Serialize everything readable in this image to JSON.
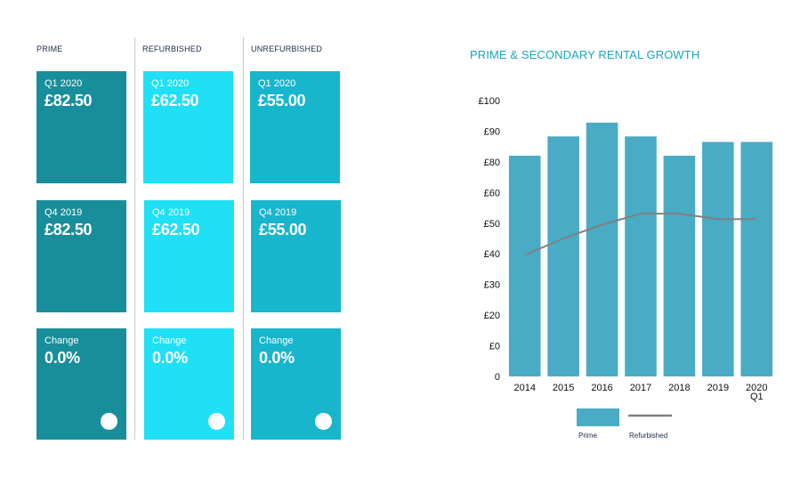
{
  "columns": [
    {
      "head": "PRIME",
      "color": "#188e9b",
      "cards": [
        {
          "label": "Q1 2020",
          "value": "£82.50"
        },
        {
          "label": "Q4 2019",
          "value": "£82.50"
        },
        {
          "label": "Change",
          "value": "0.0%"
        }
      ]
    },
    {
      "head": "REFURBISHED",
      "color": "#1fe0f5",
      "cards": [
        {
          "label": "Q1 2020",
          "value": "£62.50"
        },
        {
          "label": "Q4 2019",
          "value": "£62.50"
        },
        {
          "label": "Change",
          "value": "0.0%"
        }
      ]
    },
    {
      "head": "UNREFURBISHED",
      "color": "#17b6cc",
      "cards": [
        {
          "label": "Q1 2020",
          "value": "£55.00"
        },
        {
          "label": "Q4 2019",
          "value": "£55.00"
        },
        {
          "label": "Change",
          "value": "0.0%"
        }
      ]
    }
  ],
  "chart_data": {
    "type": "bar",
    "title": "PRIME & SECONDARY RENTAL GROWTH",
    "categories": [
      "2014",
      "2015",
      "2016",
      "2017",
      "2018",
      "2019",
      "2020 Q1"
    ],
    "series": [
      {
        "name": "Prime",
        "kind": "bar",
        "color": "#4aabc5",
        "values": [
          80,
          87,
          92,
          87,
          80,
          85,
          85
        ]
      },
      {
        "name": "Refurbished",
        "kind": "line",
        "color": "#808080",
        "values": [
          44,
          50,
          55,
          59,
          59,
          57,
          57
        ]
      }
    ],
    "y_tick_labels": [
      "0",
      "£0",
      "£20",
      "£30",
      "£40",
      "£50",
      "£60",
      "£80",
      "£90",
      "£100"
    ],
    "ylim": [
      0,
      100
    ],
    "grid": false,
    "legend_position": "bottom"
  }
}
